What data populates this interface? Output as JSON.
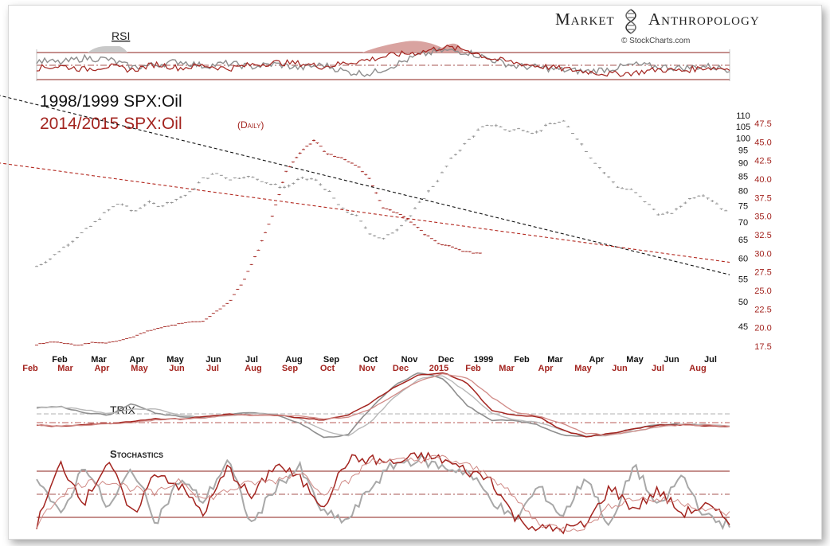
{
  "brand": {
    "name_part1": "Market",
    "name_part2": "Anthropology",
    "credit": "© StockCharts.com",
    "helix_icon": "dna-helix-icon"
  },
  "colors": {
    "series_1998": "#8e8e8e",
    "series_2014": "#a3241f",
    "rsi_fill_red": "#d9a3a0",
    "rsi_fill_grey": "#c9c9c9",
    "trend_red": "#b3281f",
    "trend_black": "#111111",
    "band": "#8b1f1a"
  },
  "panels": {
    "rsi_label": "RSI",
    "trix_label": "TRIX",
    "stoch_label": "Stochastics"
  },
  "chart_data": [
    {
      "type": "line",
      "title_1998": "1998/1999 SPX:Oil",
      "title_2014": "2014/2015 SPX:Oil",
      "title_2014_suffix": "(Daily)",
      "x_labels_1998": [
        "Feb",
        "Mar",
        "Apr",
        "May",
        "Jun",
        "Jul",
        "Aug",
        "Sep",
        "Oct",
        "Nov",
        "Dec",
        "1999",
        "Feb",
        "Mar",
        "Apr",
        "May",
        "Jun",
        "Jul"
      ],
      "x_labels_2014": [
        "Feb",
        "Mar",
        "Apr",
        "May",
        "Jun",
        "Jul",
        "Aug",
        "Sep",
        "Oct",
        "Nov",
        "Dec",
        "2015",
        "Feb",
        "Mar",
        "Apr",
        "May",
        "Jun",
        "Jul",
        "Aug"
      ],
      "y_axis_1998": {
        "ticks": [
          45,
          50,
          55,
          60,
          65,
          70,
          75,
          80,
          85,
          90,
          95,
          100,
          105,
          110
        ],
        "log": true
      },
      "y_axis_2014": {
        "ticks": [
          17.5,
          20.0,
          22.5,
          25.0,
          27.5,
          30.0,
          32.5,
          35.0,
          37.5,
          40.0,
          42.5,
          45.0,
          47.5
        ]
      },
      "series": [
        {
          "name": "1998/1999 SPX:Oil",
          "axis": "1998",
          "x": [
            0,
            2,
            4,
            6,
            8,
            10,
            12,
            14,
            16,
            18,
            20,
            22,
            24,
            26,
            28,
            30,
            32,
            34,
            36,
            38,
            40,
            42,
            44,
            46,
            48,
            50,
            52,
            54,
            56,
            58,
            60,
            62,
            64,
            66,
            68,
            70,
            72,
            74,
            76,
            78,
            80,
            82,
            84,
            86,
            88,
            90,
            92,
            94,
            96,
            98,
            100
          ],
          "values": [
            58,
            60,
            63,
            66,
            69,
            73,
            76,
            73,
            76,
            75,
            77,
            79,
            84,
            86,
            84,
            85,
            84,
            82,
            81,
            84,
            84,
            80,
            74,
            72,
            67,
            65,
            68,
            72,
            78,
            84,
            92,
            98,
            104,
            106,
            103,
            104,
            102,
            106,
            107,
            100,
            92,
            86,
            81,
            80,
            76,
            72,
            73,
            77,
            79,
            76,
            72
          ]
        },
        {
          "name": "2014/2015 SPX:Oil",
          "axis": "2014",
          "x": [
            0,
            2,
            4,
            6,
            8,
            10,
            12,
            14,
            16,
            18,
            20,
            22,
            24,
            26,
            28,
            30,
            32,
            34,
            36,
            38,
            40,
            42,
            44,
            46,
            48,
            50,
            52,
            54,
            56,
            58,
            60,
            62,
            64
          ],
          "values": [
            17.7,
            18.1,
            17.9,
            17.6,
            18.0,
            17.9,
            18.3,
            18.8,
            19.5,
            20.0,
            20.4,
            20.7,
            20.9,
            22.2,
            23.7,
            26.5,
            30.5,
            35.0,
            41.0,
            43.6,
            45.2,
            43.4,
            42.8,
            42.0,
            40.0,
            36.2,
            35.5,
            34.3,
            32.6,
            31.4,
            30.8,
            30.2,
            30.0
          ]
        }
      ],
      "trendlines": [
        {
          "name": "black-dashed-trend",
          "from": [
            -8,
            122
          ],
          "to": [
            100,
            56
          ]
        },
        {
          "name": "red-dashed-trend",
          "from": [
            -8,
            42.5
          ],
          "to": [
            100,
            28.8
          ]
        }
      ]
    },
    {
      "type": "line",
      "name": "RSI",
      "series": [
        {
          "axis": "1998",
          "values": [
            58,
            55,
            62,
            60,
            48,
            52,
            57,
            50,
            54,
            49,
            53,
            47,
            52,
            41,
            39,
            52,
            66,
            73,
            71,
            60,
            50,
            48,
            44,
            42,
            46,
            52,
            49,
            47,
            50,
            45
          ]
        },
        {
          "axis": "2014",
          "values": [
            47,
            50,
            45,
            50,
            44,
            53,
            47,
            51,
            46,
            52,
            55,
            54,
            49,
            55,
            60,
            67,
            70,
            78,
            74,
            61,
            55,
            50,
            46,
            42,
            38,
            40,
            45,
            43,
            48,
            46
          ]
        }
      ]
    },
    {
      "type": "line",
      "name": "TRIX",
      "series": [
        {
          "axis": "1998",
          "values": [
            0.3,
            0.32,
            0.2,
            0.15,
            0.38,
            0.18,
            0.12,
            0.1,
            0.16,
            0.2,
            0.15,
            0.0,
            -0.3,
            -0.25,
            0.3,
            0.75,
            1.0,
            0.88,
            0.35,
            0.05,
            0.05,
            -0.05,
            -0.25,
            -0.28,
            -0.22,
            -0.12,
            -0.04,
            -0.03,
            -0.05,
            -0.08
          ]
        },
        {
          "axis": "2014",
          "values": [
            -0.05,
            -0.08,
            -0.03,
            -0.02,
            0.03,
            0.08,
            0.07,
            0.12,
            0.17,
            0.14,
            0.15,
            0.1,
            0.05,
            0.15,
            0.4,
            0.72,
            0.95,
            1.0,
            0.8,
            0.25,
            0.15,
            0.12,
            -0.15,
            -0.28,
            -0.22,
            -0.12,
            -0.05,
            -0.04,
            -0.06,
            -0.08
          ]
        }
      ]
    },
    {
      "type": "line",
      "name": "Stochastics",
      "series": [
        {
          "axis": "1998",
          "values": [
            75,
            20,
            90,
            30,
            85,
            15,
            70,
            40,
            95,
            10,
            60,
            85,
            25,
            15,
            60,
            90,
            95,
            85,
            80,
            45,
            15,
            60,
            20,
            75,
            5,
            90,
            30,
            75,
            20,
            10
          ]
        },
        {
          "axis": "2014",
          "values": [
            10,
            90,
            40,
            95,
            20,
            80,
            60,
            25,
            85,
            45,
            90,
            70,
            35,
            95,
            95,
            90,
            100,
            95,
            80,
            70,
            20,
            5,
            5,
            10,
            60,
            30,
            55,
            25,
            35,
            15
          ]
        }
      ]
    }
  ]
}
